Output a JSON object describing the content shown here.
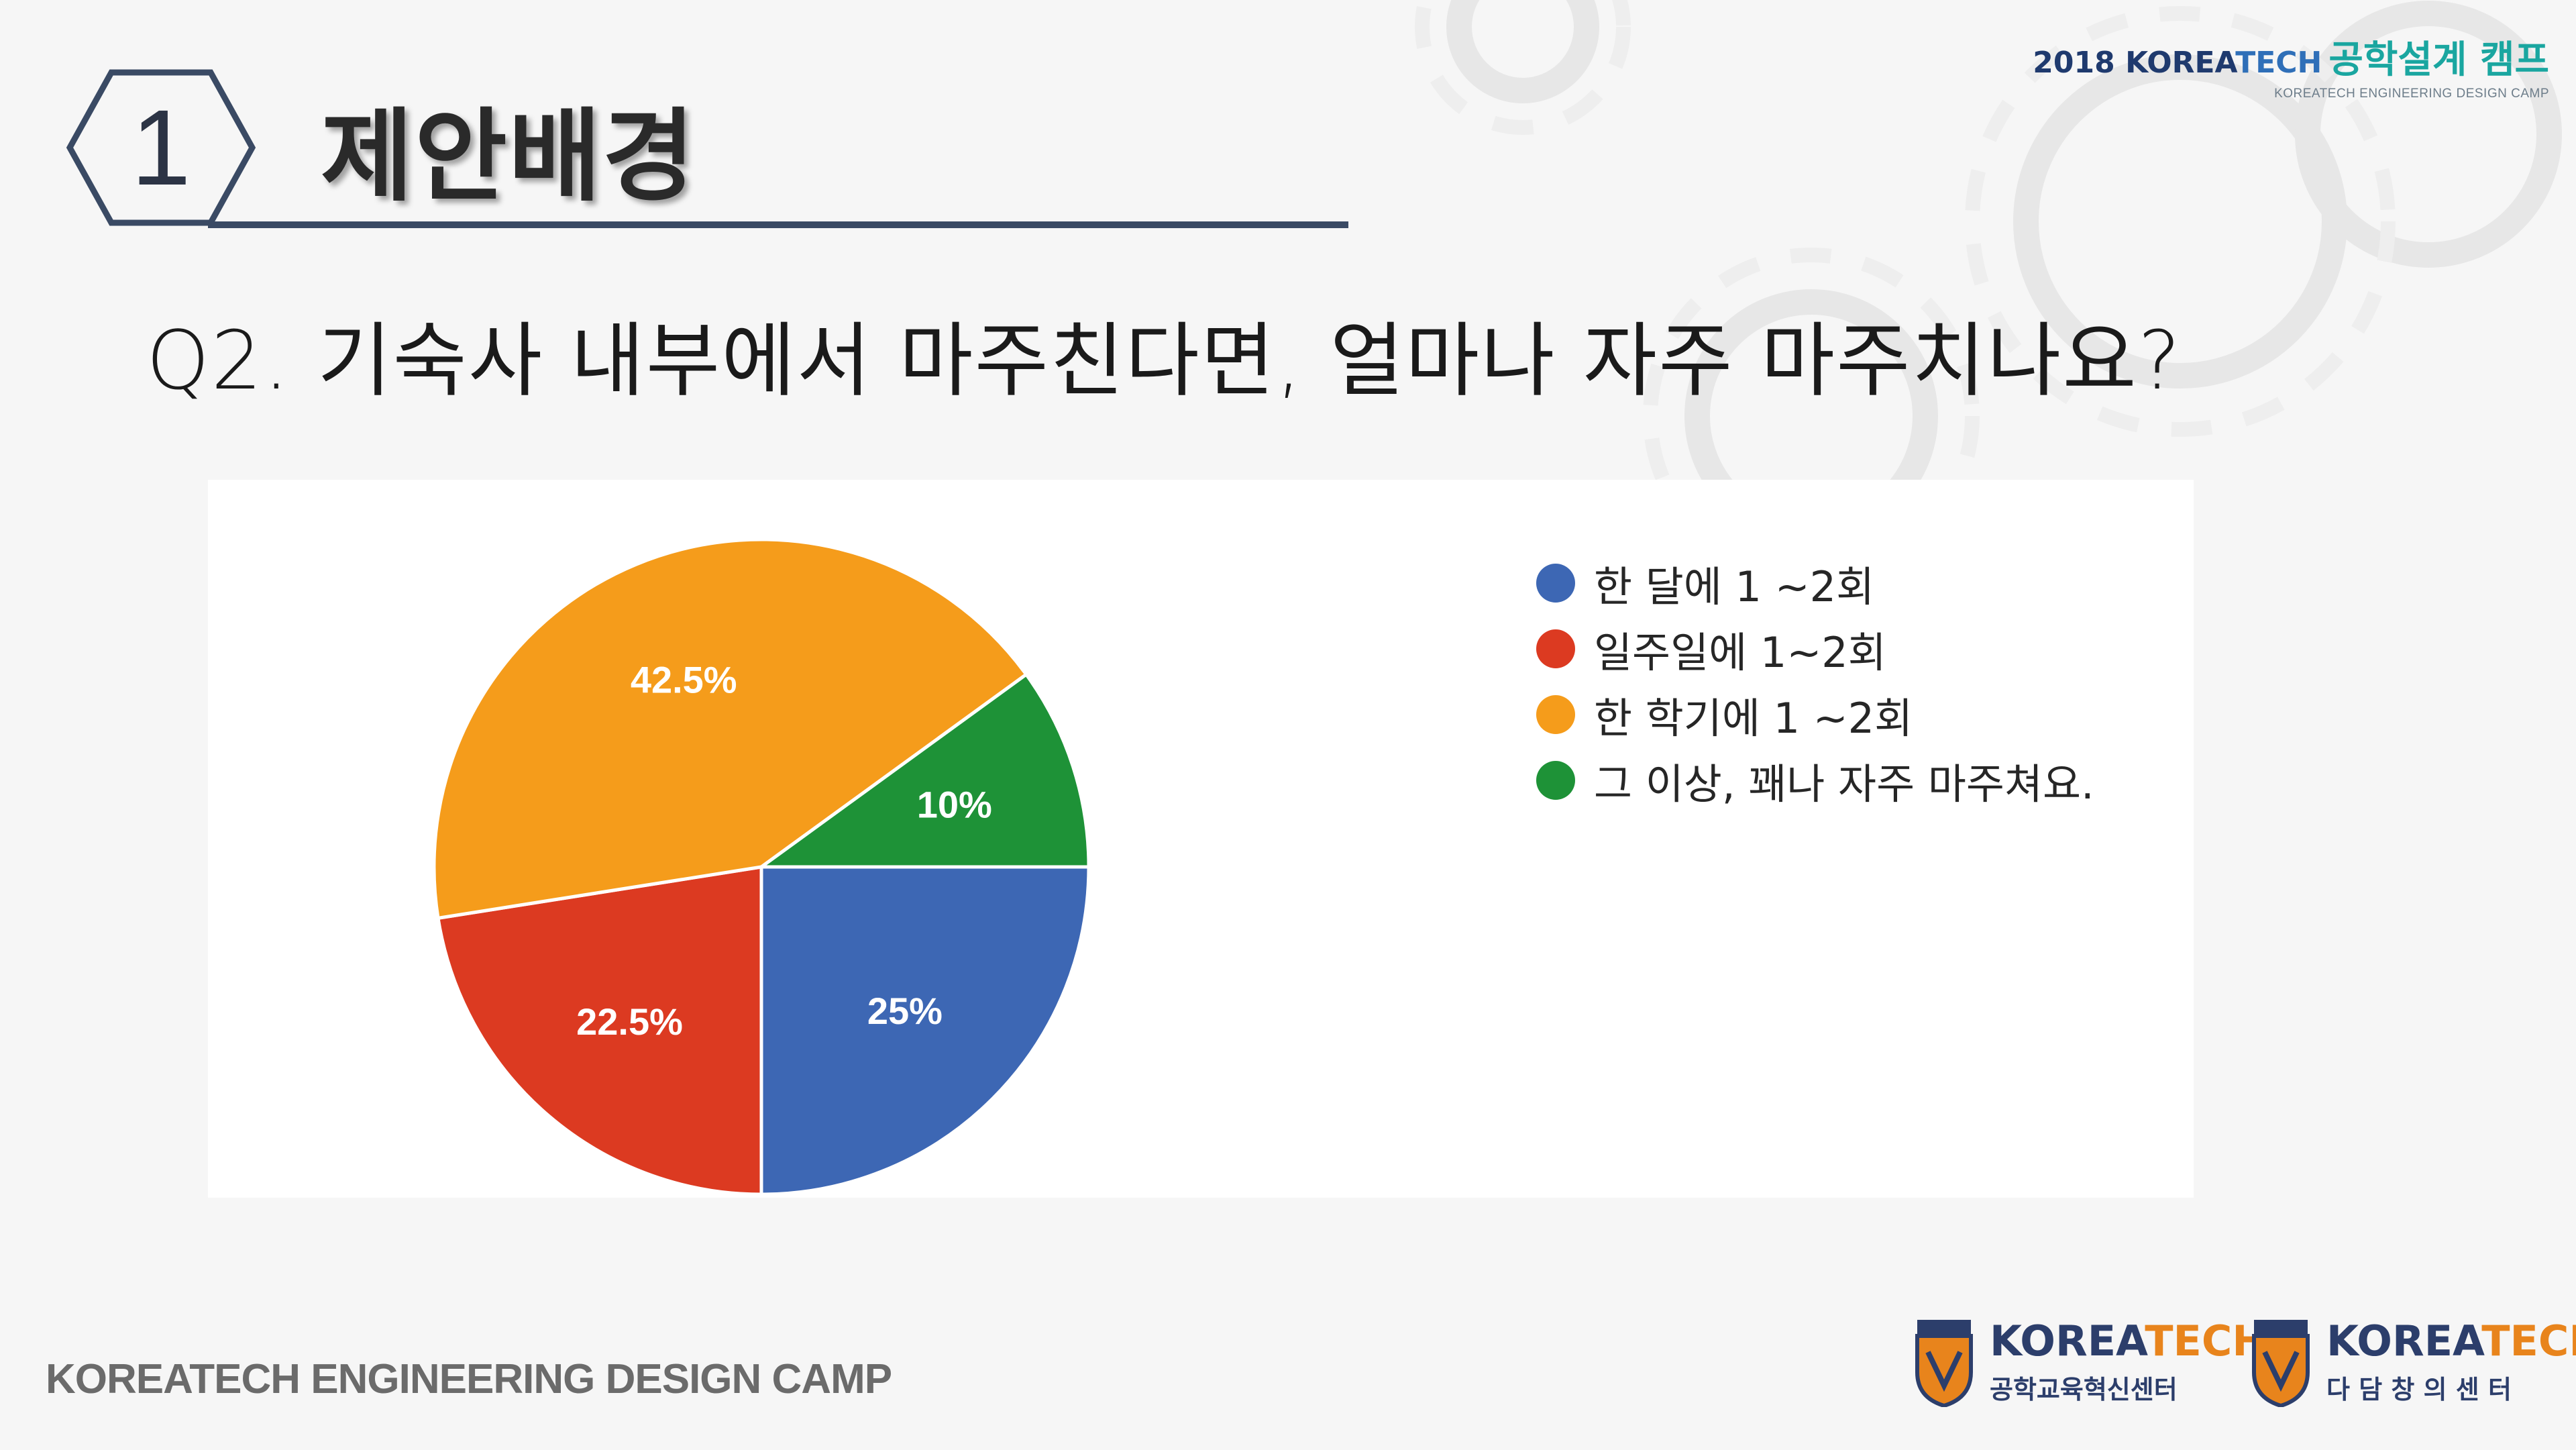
{
  "brand": {
    "top_line_prefix": "2018 KOREA",
    "top_line_tech": "TECH",
    "top_line_camp": "공학설계 캠프",
    "subtitle": "KOREATECH ENGINEERING DESIGN CAMP"
  },
  "section": {
    "number": "1",
    "title": "제안배경"
  },
  "question": "Q2. 기숙사 내부에서 마주친다면, 얼마나 자주 마주치나요?",
  "chart_data": {
    "type": "pie",
    "title": "",
    "categories": [
      "한 달에 1 ~2회",
      "일주일에 1~2회",
      "한 학기에 1 ~2회",
      "그 이상, 꽤나 자주 마주쳐요."
    ],
    "values": [
      25,
      22.5,
      42.5,
      10
    ],
    "data_labels": [
      "25%",
      "22.5%",
      "42.5%",
      "10%"
    ],
    "colors": [
      "#3d67b4",
      "#dc3a21",
      "#f59c1b",
      "#1e9237"
    ],
    "legend": "right"
  },
  "footer": {
    "text": "KOREATECH ENGINEERING DESIGN CAMP",
    "logos": [
      {
        "badge": "ICEE",
        "name_prefix": "KOREA",
        "name_tech": "TECH",
        "sub": "공학교육혁신센터"
      },
      {
        "badge": "DLF",
        "name_prefix": "KOREA",
        "name_tech": "TECH",
        "sub": "다 담 창 의 센 터"
      }
    ]
  }
}
